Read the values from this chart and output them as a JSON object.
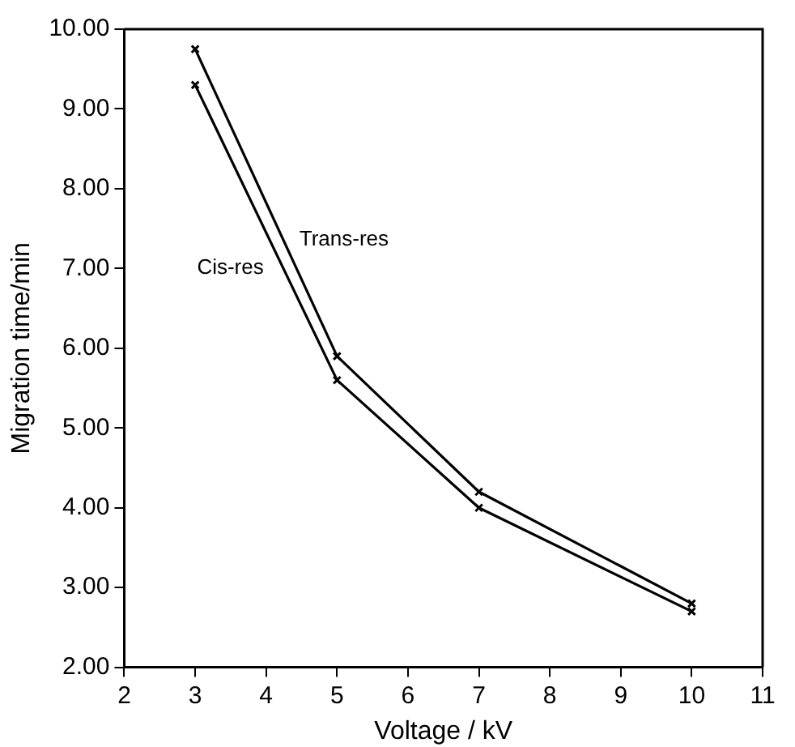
{
  "chart_data": {
    "type": "line",
    "xlabel": "Voltage / kV",
    "ylabel": "Migration time/min",
    "x": [
      3,
      5,
      7,
      10
    ],
    "series": [
      {
        "name": "Cis-res",
        "color": "#000000",
        "values": [
          9.3,
          5.6,
          4.0,
          2.7
        ]
      },
      {
        "name": "Trans-res",
        "color": "#000000",
        "values": [
          9.75,
          5.9,
          4.2,
          2.8
        ]
      }
    ],
    "xlim": [
      2,
      11
    ],
    "xticks": [
      2,
      3,
      4,
      5,
      6,
      7,
      8,
      9,
      10,
      11
    ],
    "ylim": [
      2,
      10
    ],
    "yticks": [
      {
        "value": 2,
        "label": "2.00"
      },
      {
        "value": 3,
        "label": "3.00"
      },
      {
        "value": 4,
        "label": "4.00"
      },
      {
        "value": 5,
        "label": "5.00"
      },
      {
        "value": 6,
        "label": "6.00"
      },
      {
        "value": 7,
        "label": "7.00"
      },
      {
        "value": 8,
        "label": "8.00"
      },
      {
        "value": 9,
        "label": "9.00"
      },
      {
        "value": 10,
        "label": "10.00"
      }
    ],
    "grid": false,
    "legend": false,
    "marker": "cross",
    "line_style": "solid"
  }
}
